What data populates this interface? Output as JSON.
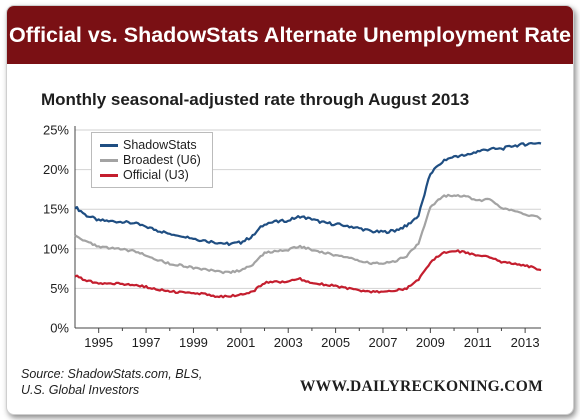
{
  "header": {
    "title": "Official vs. ShadowStats Alternate Unemployment Rate",
    "subtitle": "Monthly seasonal-adjusted rate through August 2013"
  },
  "footer": {
    "source_line1": "Source: ShadowStats.com, BLS,",
    "source_line2": "U.S. Global Investors",
    "brand": "WWW.DAILYRECKONING.COM"
  },
  "colors": {
    "banner": "#7a1014",
    "shadowstats": "#1f4e82",
    "u6": "#a3a3a3",
    "u3": "#c41e2e",
    "grid": "#d2d2d2",
    "axis": "#444444"
  },
  "chart_data": {
    "type": "line",
    "title": "Official vs. ShadowStats Alternate Unemployment Rate",
    "subtitle": "Monthly seasonal-adjusted rate through August 2013",
    "xlabel": "",
    "ylabel": "",
    "x_range": [
      1994.0,
      2013.67
    ],
    "ylim": [
      0,
      25
    ],
    "y_ticks": [
      "0%",
      "5%",
      "10%",
      "15%",
      "20%",
      "25%"
    ],
    "y_tick_values": [
      0,
      5,
      10,
      15,
      20,
      25
    ],
    "x_ticks": [
      "1995",
      "1997",
      "1999",
      "2001",
      "2003",
      "2005",
      "2007",
      "2009",
      "2011",
      "2013"
    ],
    "x_tick_values": [
      1995,
      1997,
      1999,
      2001,
      2003,
      2005,
      2007,
      2009,
      2011,
      2013
    ],
    "grid": true,
    "legend_position": "top-left",
    "series": [
      {
        "name": "ShadowStats",
        "color": "#1f4e82",
        "points": [
          [
            1994.0,
            15.3
          ],
          [
            1994.5,
            14.2
          ],
          [
            1995.0,
            13.6
          ],
          [
            1995.5,
            13.5
          ],
          [
            1996.0,
            13.4
          ],
          [
            1996.5,
            13.2
          ],
          [
            1997.0,
            12.8
          ],
          [
            1997.5,
            12.3
          ],
          [
            1998.0,
            11.9
          ],
          [
            1998.5,
            11.7
          ],
          [
            1999.0,
            11.3
          ],
          [
            1999.5,
            11.0
          ],
          [
            2000.0,
            10.8
          ],
          [
            2000.5,
            10.6
          ],
          [
            2001.0,
            10.8
          ],
          [
            2001.5,
            11.6
          ],
          [
            2002.0,
            13.2
          ],
          [
            2002.5,
            13.4
          ],
          [
            2003.0,
            13.6
          ],
          [
            2003.5,
            14.1
          ],
          [
            2004.0,
            13.7
          ],
          [
            2004.5,
            13.3
          ],
          [
            2005.0,
            13.1
          ],
          [
            2005.5,
            12.9
          ],
          [
            2006.0,
            12.6
          ],
          [
            2006.5,
            12.2
          ],
          [
            2007.0,
            12.1
          ],
          [
            2007.5,
            12.3
          ],
          [
            2008.0,
            12.9
          ],
          [
            2008.5,
            14.2
          ],
          [
            2009.0,
            19.5
          ],
          [
            2009.5,
            21.0
          ],
          [
            2010.0,
            21.7
          ],
          [
            2010.5,
            21.8
          ],
          [
            2011.0,
            22.3
          ],
          [
            2011.5,
            22.6
          ],
          [
            2012.0,
            22.6
          ],
          [
            2012.5,
            23.0
          ],
          [
            2013.0,
            23.2
          ],
          [
            2013.5,
            23.4
          ],
          [
            2013.67,
            23.3
          ]
        ]
      },
      {
        "name": "Broadest (U6)",
        "color": "#a3a3a3",
        "points": [
          [
            1994.0,
            11.7
          ],
          [
            1994.5,
            10.9
          ],
          [
            1995.0,
            10.2
          ],
          [
            1995.5,
            10.1
          ],
          [
            1996.0,
            9.9
          ],
          [
            1996.5,
            9.7
          ],
          [
            1997.0,
            9.2
          ],
          [
            1997.5,
            8.6
          ],
          [
            1998.0,
            8.1
          ],
          [
            1998.5,
            7.9
          ],
          [
            1999.0,
            7.6
          ],
          [
            1999.5,
            7.4
          ],
          [
            2000.0,
            7.1
          ],
          [
            2000.5,
            7.0
          ],
          [
            2001.0,
            7.3
          ],
          [
            2001.5,
            8.0
          ],
          [
            2002.0,
            9.5
          ],
          [
            2002.5,
            9.7
          ],
          [
            2003.0,
            9.9
          ],
          [
            2003.5,
            10.3
          ],
          [
            2004.0,
            9.9
          ],
          [
            2004.5,
            9.5
          ],
          [
            2005.0,
            9.2
          ],
          [
            2005.5,
            8.9
          ],
          [
            2006.0,
            8.4
          ],
          [
            2006.5,
            8.2
          ],
          [
            2007.0,
            8.2
          ],
          [
            2007.5,
            8.4
          ],
          [
            2008.0,
            9.1
          ],
          [
            2008.5,
            10.7
          ],
          [
            2009.0,
            15.2
          ],
          [
            2009.5,
            16.6
          ],
          [
            2010.0,
            16.8
          ],
          [
            2010.5,
            16.6
          ],
          [
            2011.0,
            16.1
          ],
          [
            2011.5,
            16.2
          ],
          [
            2012.0,
            15.1
          ],
          [
            2012.5,
            14.8
          ],
          [
            2013.0,
            14.4
          ],
          [
            2013.5,
            14.0
          ],
          [
            2013.67,
            13.7
          ]
        ]
      },
      {
        "name": "Official (U3)",
        "color": "#c41e2e",
        "points": [
          [
            1994.0,
            6.6
          ],
          [
            1994.5,
            6.0
          ],
          [
            1995.0,
            5.6
          ],
          [
            1995.5,
            5.6
          ],
          [
            1996.0,
            5.6
          ],
          [
            1996.5,
            5.4
          ],
          [
            1997.0,
            5.2
          ],
          [
            1997.5,
            4.9
          ],
          [
            1998.0,
            4.6
          ],
          [
            1998.5,
            4.5
          ],
          [
            1999.0,
            4.3
          ],
          [
            1999.5,
            4.3
          ],
          [
            2000.0,
            4.0
          ],
          [
            2000.5,
            4.0
          ],
          [
            2001.0,
            4.2
          ],
          [
            2001.5,
            4.6
          ],
          [
            2002.0,
            5.7
          ],
          [
            2002.5,
            5.8
          ],
          [
            2003.0,
            5.9
          ],
          [
            2003.5,
            6.2
          ],
          [
            2004.0,
            5.7
          ],
          [
            2004.5,
            5.5
          ],
          [
            2005.0,
            5.3
          ],
          [
            2005.5,
            5.0
          ],
          [
            2006.0,
            4.7
          ],
          [
            2006.5,
            4.6
          ],
          [
            2007.0,
            4.6
          ],
          [
            2007.5,
            4.7
          ],
          [
            2008.0,
            5.0
          ],
          [
            2008.5,
            6.1
          ],
          [
            2009.0,
            8.3
          ],
          [
            2009.5,
            9.5
          ],
          [
            2010.0,
            9.8
          ],
          [
            2010.5,
            9.5
          ],
          [
            2011.0,
            9.1
          ],
          [
            2011.5,
            9.0
          ],
          [
            2012.0,
            8.3
          ],
          [
            2012.5,
            8.2
          ],
          [
            2013.0,
            7.9
          ],
          [
            2013.5,
            7.5
          ],
          [
            2013.67,
            7.3
          ]
        ]
      }
    ]
  }
}
